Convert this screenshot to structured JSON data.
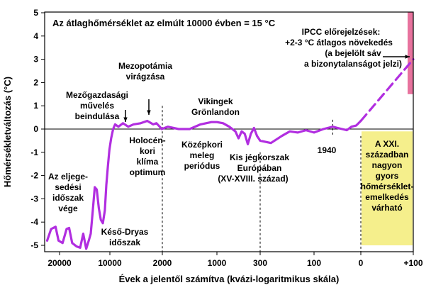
{
  "chart_data": {
    "type": "line",
    "title": "Az átlaghőmérséklet az elmúlt 10000 évben = 15 °C",
    "xlabel": "Évek a jelentől számítva (kvázi-logaritmikus skála)",
    "ylabel": "Hőmérsékletváltozás (°C)",
    "ylim": [
      -5.3,
      5.3
    ],
    "yticks": [
      -5,
      -4,
      -3,
      -2,
      -1,
      0,
      1,
      2,
      3,
      4,
      5
    ],
    "xticks": [
      "20000",
      "10000",
      "2000",
      "1000",
      "300",
      "100",
      "0",
      "+100"
    ],
    "grid": false,
    "series": [
      {
        "style": "solid",
        "color": "#b12ee0",
        "points": [
          [
            -22500,
            -4.8
          ],
          [
            -21700,
            -4.3
          ],
          [
            -20800,
            -4.2
          ],
          [
            -20200,
            -4.8
          ],
          [
            -19400,
            -4.9
          ],
          [
            -18600,
            -4.3
          ],
          [
            -18100,
            -4.25
          ],
          [
            -17500,
            -4.9
          ],
          [
            -16600,
            -5.05
          ],
          [
            -15900,
            -5.1
          ],
          [
            -15300,
            -4.5
          ],
          [
            -14700,
            -5.15
          ],
          [
            -14200,
            -4.8
          ],
          [
            -13800,
            -4.5
          ],
          [
            -13400,
            -3.5
          ],
          [
            -13000,
            -2.5
          ],
          [
            -12600,
            -2.6
          ],
          [
            -12200,
            -3.4
          ],
          [
            -11800,
            -3.9
          ],
          [
            -11400,
            -4.05
          ],
          [
            -11000,
            -3.5
          ],
          [
            -10700,
            -2.4
          ],
          [
            -10400,
            -1.6
          ],
          [
            -10100,
            -0.9
          ],
          [
            -9800,
            -0.4
          ],
          [
            -9500,
            0.0
          ],
          [
            -9200,
            0.2
          ],
          [
            -8700,
            0.1
          ],
          [
            -8000,
            0.25
          ],
          [
            -7200,
            0.1
          ],
          [
            -6400,
            0.2
          ],
          [
            -5300,
            0.25
          ],
          [
            -4300,
            0.35
          ],
          [
            -3400,
            0.2
          ],
          [
            -2900,
            0.25
          ],
          [
            -2400,
            0.1
          ],
          [
            -2100,
            0.0
          ],
          [
            -1900,
            0.1
          ],
          [
            -1700,
            0.0
          ],
          [
            -1500,
            0.0
          ],
          [
            -1300,
            0.2
          ],
          [
            -1100,
            0.3
          ],
          [
            -1000,
            0.3
          ],
          [
            -900,
            0.25
          ],
          [
            -800,
            0.1
          ],
          [
            -700,
            -0.1
          ],
          [
            -650,
            -0.4
          ],
          [
            -600,
            -0.1
          ],
          [
            -550,
            -0.2
          ],
          [
            -500,
            -0.65
          ],
          [
            -450,
            -0.2
          ],
          [
            -400,
            0.05
          ],
          [
            -350,
            -0.3
          ],
          [
            -300,
            -0.5
          ],
          [
            -260,
            -0.6
          ],
          [
            -220,
            -0.3
          ],
          [
            -190,
            -0.1
          ],
          [
            -160,
            -0.15
          ],
          [
            -130,
            -0.05
          ],
          [
            -100,
            -0.15
          ],
          [
            -80,
            0.0
          ],
          [
            -60,
            0.1
          ],
          [
            -50,
            0.05
          ],
          [
            -40,
            0.0
          ],
          [
            -30,
            -0.05
          ],
          [
            -20,
            0.1
          ],
          [
            -10,
            0.15
          ],
          [
            0,
            0.35
          ]
        ]
      },
      {
        "style": "dashed",
        "color": "#b12ee0",
        "points": [
          [
            0,
            0.35
          ],
          [
            100,
            3.0
          ]
        ]
      }
    ],
    "uncertainty_band": {
      "x": 100,
      "y_range": [
        1.5,
        5.3
      ],
      "color": "#e8739e"
    },
    "highlight_box": {
      "x_range": [
        0,
        100
      ],
      "y_range": [
        -5.0,
        -0.1
      ],
      "color": "#f5ef8c"
    },
    "annotations": [
      "Az eljege-",
      "sedési",
      "időszak",
      "vége",
      "Késő-Dryas",
      "időszak",
      "Mezőgazdasági",
      "művelés",
      "beindulása",
      "Mezopotámia",
      "virágzása",
      "Holocén-",
      "kori",
      "klíma",
      "optimum",
      "Vikingek",
      "Grönlandon",
      "Középkori",
      "meleg",
      "periódus",
      "Kis jégkorszak",
      "Európában",
      "(XV-XVIII. század)",
      "1940",
      "IPCC előrejelzések:",
      "+2-3 °C átlagos növekedés",
      "(a bejelölt sáv",
      "a bizonytalanságot jelzi)",
      "A XXI.",
      "században",
      "nagyon",
      "gyors",
      "hőmérséklet-",
      "emelkedés",
      "várható"
    ]
  }
}
